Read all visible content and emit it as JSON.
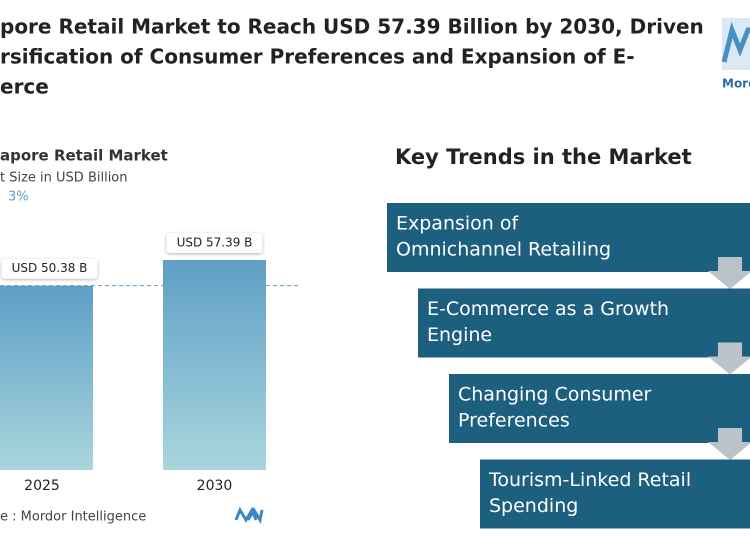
{
  "header": {
    "title_lines": [
      "pore Retail Market to Reach USD 57.39 Billion by 2030, Driven",
      "rsification of Consumer Preferences and Expansion of E-",
      "erce"
    ]
  },
  "logo": {
    "text": "Mord"
  },
  "chart_data": {
    "type": "bar",
    "title": "apore Retail Market",
    "subtitle": "t Size in USD Billion",
    "cagr": "3%",
    "categories": [
      "2025",
      "2030"
    ],
    "values": [
      50.38,
      57.39
    ],
    "value_labels": [
      "USD 50.38 B",
      "USD 57.39 B"
    ],
    "color": "#5e9fc6",
    "source": "e :  Mordor Intelligence"
  },
  "trends": {
    "title": "Key Trends in the Market",
    "items": [
      [
        "Expansion of",
        "Omnichannel Retailing"
      ],
      [
        "E-Commerce as a Growth",
        "Engine"
      ],
      [
        "Changing Consumer",
        "Preferences"
      ],
      [
        "Tourism-Linked Retail",
        "Spending"
      ]
    ]
  }
}
